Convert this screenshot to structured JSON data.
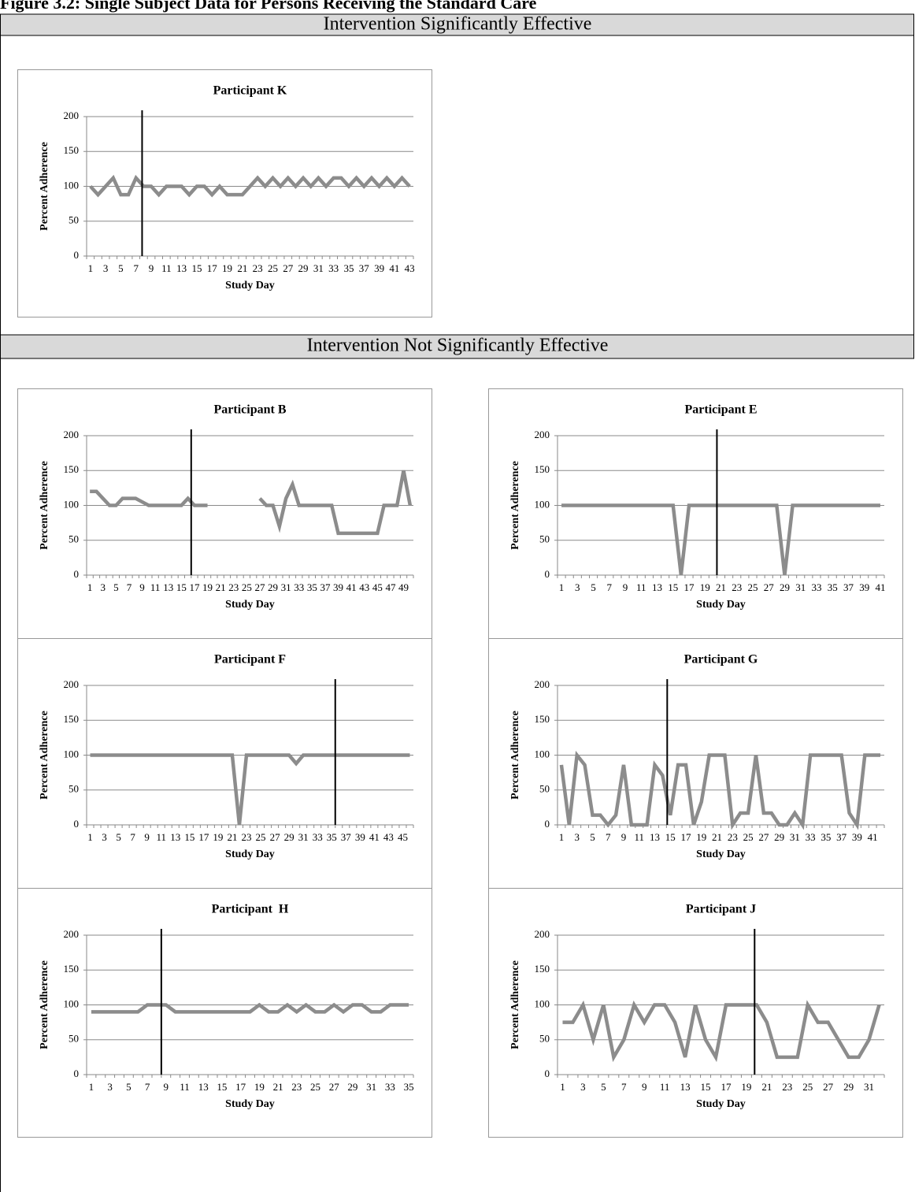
{
  "title": "Figure 3.2: Single Subject Data for Persons Receiving the Standard Care",
  "sections": [
    {
      "heading": "Intervention Significantly Effective"
    },
    {
      "heading": "Intervention Not Significantly Effective"
    }
  ],
  "chart_data": [
    {
      "type": "line",
      "title": "Participant K",
      "x_label": "Study Day",
      "y_label": "Percent Adherence",
      "categories": [
        1,
        null,
        3,
        null,
        5,
        null,
        7,
        null,
        9,
        null,
        11,
        null,
        13,
        null,
        15,
        null,
        17,
        null,
        19,
        null,
        21,
        null,
        23,
        null,
        25,
        null,
        27,
        null,
        29,
        null,
        31,
        null,
        33,
        null,
        35,
        null,
        37,
        null,
        39,
        null,
        41,
        null,
        43
      ],
      "values": [
        100,
        88,
        100,
        112,
        88,
        88,
        112,
        100,
        100,
        88,
        100,
        100,
        100,
        88,
        100,
        100,
        88,
        100,
        88,
        88,
        88,
        100,
        112,
        100,
        112,
        100,
        112,
        100,
        112,
        100,
        112,
        100,
        112,
        112,
        100,
        112,
        100,
        112,
        100,
        112,
        100,
        112,
        100
      ],
      "color": "#8c8c8c",
      "ylim": [
        0,
        200
      ],
      "yticks": [
        0,
        50,
        100,
        150,
        200
      ],
      "grid": true,
      "phase_change": 7.8
    },
    {
      "type": "line",
      "title": "Participant B",
      "x_label": "Study Day",
      "y_label": "Percent Adherence",
      "categories": [
        1,
        null,
        3,
        null,
        5,
        null,
        7,
        null,
        9,
        null,
        11,
        null,
        13,
        null,
        15,
        null,
        17,
        null,
        19,
        null,
        21,
        null,
        23,
        null,
        25,
        null,
        27,
        null,
        29,
        null,
        31,
        null,
        33,
        null,
        35,
        null,
        37,
        null,
        39,
        null,
        41,
        null,
        43,
        null,
        45,
        null,
        47,
        null,
        49,
        null
      ],
      "values": [
        120,
        120,
        110,
        100,
        100,
        110,
        110,
        110,
        105,
        100,
        100,
        100,
        100,
        100,
        100,
        110,
        100,
        100,
        100,
        null,
        null,
        null,
        null,
        null,
        null,
        null,
        110,
        100,
        100,
        70,
        110,
        130,
        100,
        100,
        100,
        100,
        100,
        100,
        60,
        60,
        60,
        60,
        60,
        60,
        60,
        100,
        100,
        100,
        150,
        100
      ],
      "color": "#8c8c8c",
      "ylim": [
        0,
        200
      ],
      "yticks": [
        0,
        50,
        100,
        150,
        200
      ],
      "grid": true,
      "phase_change": 16.5
    },
    {
      "type": "line",
      "title": "Participant E",
      "x_label": "Study Day",
      "y_label": "Percent Adherence",
      "categories": [
        1,
        null,
        3,
        null,
        5,
        null,
        7,
        null,
        9,
        null,
        11,
        null,
        13,
        null,
        15,
        null,
        17,
        null,
        19,
        null,
        21,
        null,
        23,
        null,
        25,
        null,
        27,
        null,
        29,
        null,
        31,
        null,
        33,
        null,
        35,
        null,
        37,
        null,
        39,
        null,
        41
      ],
      "values": [
        100,
        100,
        100,
        100,
        100,
        100,
        100,
        100,
        100,
        100,
        100,
        100,
        100,
        100,
        100,
        0,
        100,
        100,
        100,
        100,
        100,
        100,
        100,
        100,
        100,
        100,
        100,
        100,
        0,
        100,
        100,
        100,
        100,
        100,
        100,
        100,
        100,
        100,
        100,
        100,
        100
      ],
      "color": "#8c8c8c",
      "ylim": [
        0,
        200
      ],
      "yticks": [
        0,
        50,
        100,
        150,
        200
      ],
      "grid": true,
      "phase_change": 20.5
    },
    {
      "type": "line",
      "title": "Participant F",
      "x_label": "Study Day",
      "y_label": "Percent Adherence",
      "categories": [
        1,
        null,
        3,
        null,
        5,
        null,
        7,
        null,
        9,
        null,
        11,
        null,
        13,
        null,
        15,
        null,
        17,
        null,
        19,
        null,
        21,
        null,
        23,
        null,
        25,
        null,
        27,
        null,
        29,
        null,
        31,
        null,
        33,
        null,
        35,
        null,
        37,
        null,
        39,
        null,
        41,
        null,
        43,
        null,
        45,
        null
      ],
      "values": [
        100,
        100,
        100,
        100,
        100,
        100,
        100,
        100,
        100,
        100,
        100,
        100,
        100,
        100,
        100,
        100,
        100,
        100,
        100,
        100,
        100,
        0,
        100,
        100,
        100,
        100,
        100,
        100,
        100,
        88,
        100,
        100,
        100,
        100,
        100,
        100,
        100,
        100,
        100,
        100,
        100,
        100,
        100,
        100,
        100,
        100
      ],
      "color": "#8c8c8c",
      "ylim": [
        0,
        200
      ],
      "yticks": [
        0,
        50,
        100,
        150,
        200
      ],
      "grid": true,
      "phase_change": 35.5
    },
    {
      "type": "line",
      "title": "Participant G",
      "x_label": "Study Day",
      "y_label": "Percent Adherence",
      "categories": [
        1,
        null,
        3,
        null,
        5,
        null,
        7,
        null,
        9,
        null,
        11,
        null,
        13,
        null,
        15,
        null,
        17,
        null,
        19,
        null,
        21,
        null,
        23,
        null,
        25,
        null,
        27,
        null,
        29,
        null,
        31,
        null,
        33,
        null,
        35,
        null,
        37,
        null,
        39,
        null,
        41,
        null
      ],
      "values": [
        86,
        0,
        100,
        86,
        14,
        14,
        0,
        14,
        86,
        0,
        0,
        0,
        86,
        71,
        14,
        86,
        86,
        0,
        33,
        100,
        100,
        100,
        0,
        17,
        17,
        100,
        17,
        17,
        0,
        0,
        17,
        0,
        100,
        100,
        100,
        100,
        100,
        17,
        0,
        100,
        100,
        100
      ],
      "color": "#8c8c8c",
      "ylim": [
        0,
        200
      ],
      "yticks": [
        0,
        50,
        100,
        150,
        200
      ],
      "grid": true,
      "phase_change": 14.6
    },
    {
      "type": "line",
      "title": "Participant  H",
      "x_label": "Study Day",
      "y_label": "Percent Adherence",
      "categories": [
        1,
        null,
        3,
        null,
        5,
        null,
        7,
        null,
        9,
        null,
        11,
        null,
        13,
        null,
        15,
        null,
        17,
        null,
        19,
        null,
        21,
        null,
        23,
        null,
        25,
        null,
        27,
        null,
        29,
        null,
        31,
        null,
        33,
        null,
        35
      ],
      "values": [
        90,
        90,
        90,
        90,
        90,
        90,
        100,
        100,
        100,
        90,
        90,
        90,
        90,
        90,
        90,
        90,
        90,
        90,
        100,
        90,
        90,
        100,
        90,
        100,
        90,
        90,
        100,
        90,
        100,
        100,
        90,
        90,
        100,
        100,
        100
      ],
      "color": "#8c8c8c",
      "ylim": [
        0,
        200
      ],
      "yticks": [
        0,
        50,
        100,
        150,
        200
      ],
      "grid": true,
      "phase_change": 8.5
    },
    {
      "type": "line",
      "title": "Participant J",
      "x_label": "Study Day",
      "y_label": "Percent Adherence",
      "categories": [
        1,
        null,
        3,
        null,
        5,
        null,
        7,
        null,
        9,
        null,
        11,
        null,
        13,
        null,
        15,
        null,
        17,
        null,
        19,
        null,
        21,
        null,
        23,
        null,
        25,
        null,
        27,
        null,
        29,
        null,
        31,
        null
      ],
      "values": [
        75,
        75,
        100,
        50,
        100,
        25,
        50,
        100,
        75,
        100,
        100,
        75,
        25,
        100,
        50,
        25,
        100,
        100,
        100,
        100,
        75,
        25,
        25,
        25,
        100,
        75,
        75,
        50,
        25,
        25,
        50,
        100
      ],
      "color": "#8c8c8c",
      "ylim": [
        0,
        200
      ],
      "yticks": [
        0,
        50,
        100,
        150,
        200
      ],
      "grid": true,
      "phase_change": 19.8
    }
  ]
}
